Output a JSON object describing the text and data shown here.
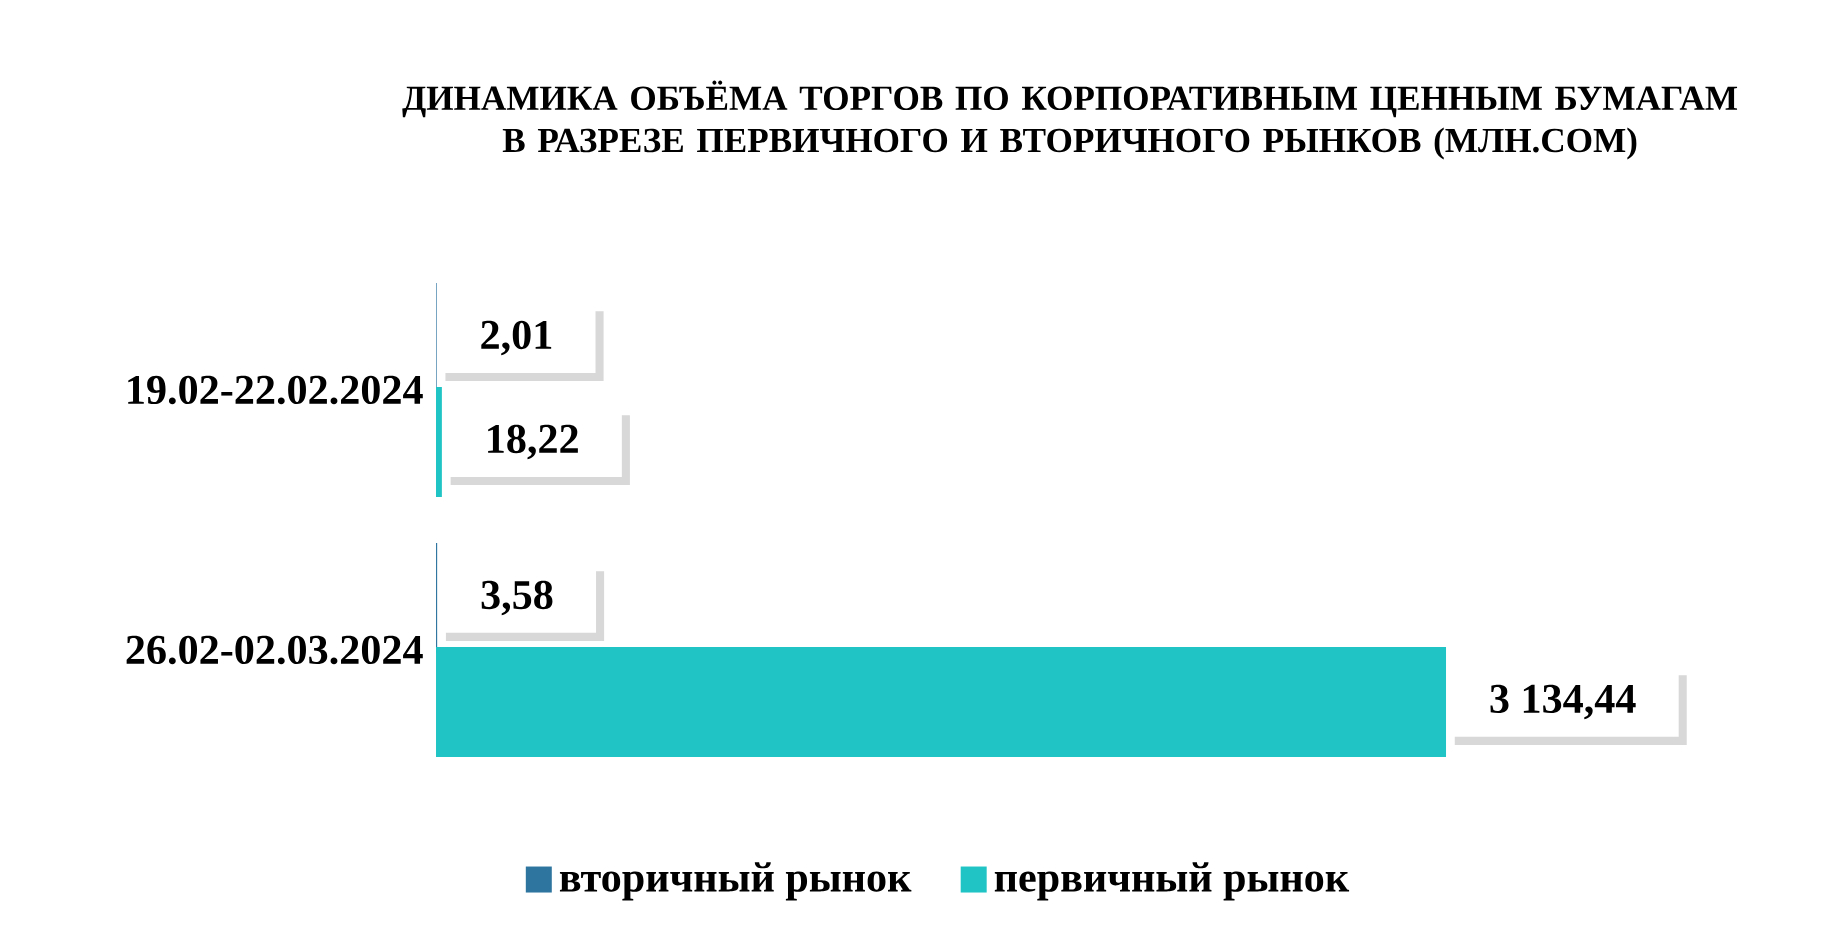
{
  "chart_data": {
    "type": "bar",
    "orientation": "horizontal",
    "title": "ДИНАМИКА ОБЪЁМА ТОРГОВ ПО КОРПОРАТИВНЫМ ЦЕННЫМ БУМАГАМ\nВ РАЗРЕЗЕ ПЕРВИЧНОГО И ВТОРИЧНОГО РЫНКОВ  (МЛН.СОМ)",
    "categories": [
      "19.02-22.02.2024",
      "26.02-02.03.2024"
    ],
    "series": [
      {
        "name": "вторичный рынок",
        "color": "#2e75a0",
        "values": [
          2.01,
          3.58
        ],
        "value_labels": [
          "2,01",
          "3,58"
        ]
      },
      {
        "name": "первичный рынок",
        "color": "#20c4c4",
        "values": [
          18.22,
          3134.44
        ],
        "value_labels": [
          "18,22",
          "3 134,44"
        ]
      }
    ],
    "legend": "bottom"
  }
}
